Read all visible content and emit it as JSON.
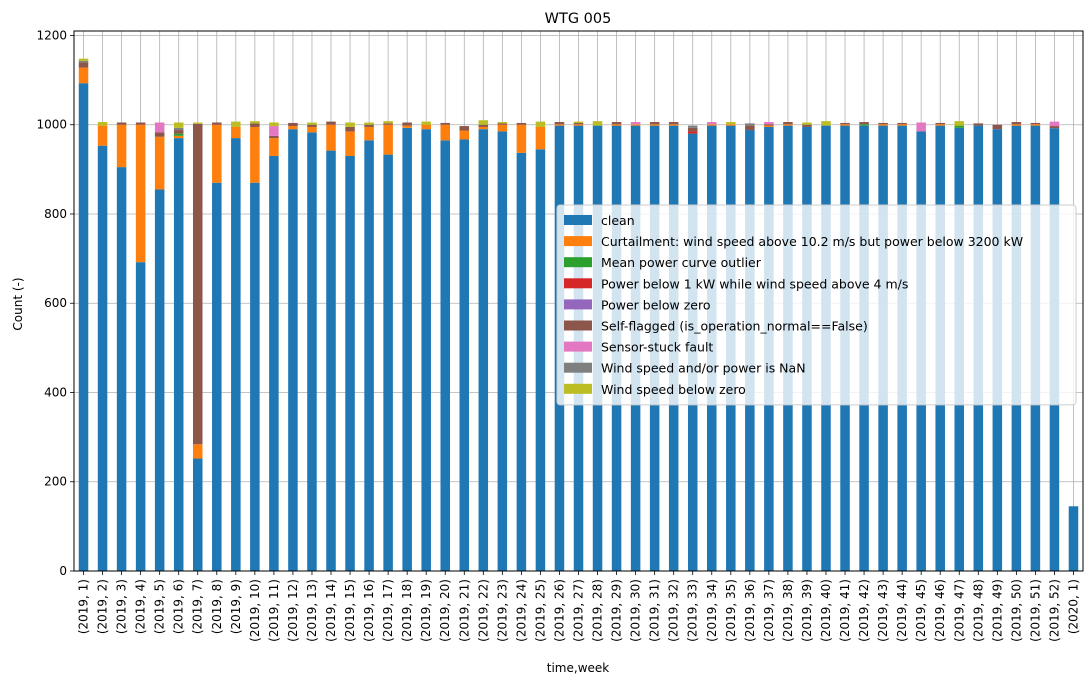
{
  "chart_data": {
    "type": "bar",
    "stacked": true,
    "title": "WTG 005",
    "xlabel": "time,week",
    "ylabel": "Count (-)",
    "ylim": [
      0,
      1210
    ],
    "yticks": [
      0,
      200,
      400,
      600,
      800,
      1000,
      1200
    ],
    "grid": true,
    "legend_position": "center-right",
    "categories": [
      "(2019, 1)",
      "(2019, 2)",
      "(2019, 3)",
      "(2019, 4)",
      "(2019, 5)",
      "(2019, 6)",
      "(2019, 7)",
      "(2019, 8)",
      "(2019, 9)",
      "(2019, 10)",
      "(2019, 11)",
      "(2019, 12)",
      "(2019, 13)",
      "(2019, 14)",
      "(2019, 15)",
      "(2019, 16)",
      "(2019, 17)",
      "(2019, 18)",
      "(2019, 19)",
      "(2019, 20)",
      "(2019, 21)",
      "(2019, 22)",
      "(2019, 23)",
      "(2019, 24)",
      "(2019, 25)",
      "(2019, 26)",
      "(2019, 27)",
      "(2019, 28)",
      "(2019, 29)",
      "(2019, 30)",
      "(2019, 31)",
      "(2019, 32)",
      "(2019, 33)",
      "(2019, 34)",
      "(2019, 35)",
      "(2019, 36)",
      "(2019, 37)",
      "(2019, 38)",
      "(2019, 39)",
      "(2019, 40)",
      "(2019, 41)",
      "(2019, 42)",
      "(2019, 43)",
      "(2019, 44)",
      "(2019, 45)",
      "(2019, 46)",
      "(2019, 47)",
      "(2019, 48)",
      "(2019, 49)",
      "(2019, 50)",
      "(2019, 51)",
      "(2019, 52)",
      "(2020, 1)"
    ],
    "series": [
      {
        "name": "clean",
        "color": "#1f77b4",
        "values": [
          1093,
          953,
          905,
          692,
          855,
          970,
          252,
          870,
          970,
          870,
          930,
          990,
          983,
          942,
          930,
          965,
          933,
          993,
          990,
          965,
          967,
          990,
          985,
          937,
          945,
          998,
          998,
          998,
          998,
          998,
          998,
          998,
          980,
          998,
          998,
          988,
          995,
          998,
          995,
          998,
          998,
          998,
          998,
          998,
          985,
          998,
          993,
          998,
          990,
          998,
          998,
          992,
          145
        ]
      },
      {
        "name": "Curtailment: wind speed above 10.2 m/s but power below 3200 kW",
        "color": "#ff7f0e",
        "values": [
          35,
          45,
          95,
          308,
          118,
          5,
          32,
          130,
          25,
          125,
          40,
          7,
          12,
          58,
          55,
          30,
          67,
          5,
          10,
          35,
          20,
          5,
          15,
          63,
          50,
          3,
          3,
          0,
          3,
          3,
          3,
          3,
          0,
          3,
          3,
          0,
          3,
          3,
          0,
          0,
          3,
          0,
          3,
          3,
          0,
          3,
          0,
          0,
          0,
          3,
          3,
          0,
          0
        ]
      },
      {
        "name": "Mean power curve outlier",
        "color": "#2ca02c",
        "values": [
          0,
          0,
          0,
          0,
          0,
          5,
          0,
          0,
          0,
          0,
          0,
          0,
          0,
          0,
          0,
          0,
          0,
          0,
          0,
          0,
          0,
          0,
          0,
          0,
          0,
          0,
          0,
          0,
          0,
          0,
          0,
          0,
          0,
          0,
          0,
          0,
          0,
          0,
          0,
          0,
          0,
          3,
          0,
          0,
          0,
          0,
          5,
          0,
          0,
          0,
          0,
          0,
          0
        ]
      },
      {
        "name": "Power below 1 kW while wind speed above 4 m/s",
        "color": "#d62728",
        "values": [
          0,
          0,
          0,
          0,
          0,
          0,
          0,
          0,
          0,
          0,
          0,
          0,
          0,
          0,
          0,
          0,
          0,
          0,
          0,
          0,
          0,
          0,
          0,
          0,
          0,
          0,
          0,
          0,
          0,
          0,
          0,
          0,
          5,
          0,
          0,
          0,
          0,
          0,
          0,
          0,
          0,
          0,
          0,
          0,
          0,
          0,
          0,
          0,
          0,
          0,
          0,
          0,
          0
        ]
      },
      {
        "name": "Power below zero",
        "color": "#9467bd",
        "values": [
          0,
          0,
          0,
          0,
          0,
          0,
          0,
          0,
          0,
          0,
          0,
          0,
          0,
          0,
          0,
          0,
          0,
          0,
          0,
          0,
          0,
          0,
          0,
          0,
          0,
          0,
          0,
          0,
          0,
          0,
          0,
          0,
          0,
          0,
          0,
          0,
          0,
          0,
          0,
          0,
          0,
          0,
          0,
          0,
          0,
          0,
          0,
          0,
          0,
          0,
          0,
          0,
          0
        ]
      },
      {
        "name": "Self-flagged (is_operation_normal==False)",
        "color": "#8c564b",
        "values": [
          12,
          0,
          5,
          5,
          10,
          8,
          718,
          5,
          0,
          8,
          5,
          7,
          5,
          7,
          10,
          5,
          3,
          7,
          0,
          4,
          10,
          5,
          3,
          4,
          0,
          5,
          3,
          0,
          5,
          0,
          5,
          5,
          8,
          0,
          0,
          10,
          3,
          5,
          5,
          0,
          3,
          5,
          3,
          3,
          0,
          3,
          0,
          5,
          10,
          5,
          3,
          5,
          0
        ]
      },
      {
        "name": "Sensor-stuck fault",
        "color": "#e377c2",
        "values": [
          0,
          0,
          0,
          0,
          22,
          0,
          0,
          0,
          0,
          0,
          22,
          0,
          0,
          0,
          0,
          0,
          0,
          0,
          0,
          0,
          0,
          0,
          0,
          0,
          0,
          0,
          0,
          0,
          0,
          5,
          0,
          0,
          0,
          5,
          0,
          0,
          5,
          0,
          0,
          0,
          0,
          0,
          0,
          0,
          20,
          0,
          0,
          0,
          0,
          0,
          0,
          10,
          0
        ]
      },
      {
        "name": "Wind speed and/or power is NaN",
        "color": "#7f7f7f",
        "values": [
          3,
          0,
          0,
          0,
          0,
          5,
          0,
          0,
          0,
          0,
          0,
          0,
          0,
          0,
          0,
          0,
          0,
          0,
          0,
          0,
          0,
          0,
          0,
          0,
          0,
          0,
          0,
          0,
          0,
          0,
          0,
          0,
          5,
          0,
          0,
          5,
          0,
          0,
          0,
          0,
          0,
          0,
          0,
          0,
          0,
          0,
          0,
          0,
          0,
          0,
          0,
          0,
          0
        ]
      },
      {
        "name": "Wind speed below zero",
        "color": "#bcbd22",
        "values": [
          5,
          8,
          0,
          0,
          0,
          12,
          3,
          0,
          12,
          5,
          8,
          0,
          5,
          0,
          10,
          5,
          5,
          0,
          7,
          0,
          0,
          10,
          3,
          0,
          12,
          0,
          3,
          10,
          0,
          0,
          0,
          0,
          0,
          0,
          5,
          0,
          0,
          0,
          5,
          10,
          0,
          0,
          0,
          0,
          0,
          0,
          10,
          0,
          0,
          0,
          0,
          0,
          0
        ]
      }
    ]
  }
}
